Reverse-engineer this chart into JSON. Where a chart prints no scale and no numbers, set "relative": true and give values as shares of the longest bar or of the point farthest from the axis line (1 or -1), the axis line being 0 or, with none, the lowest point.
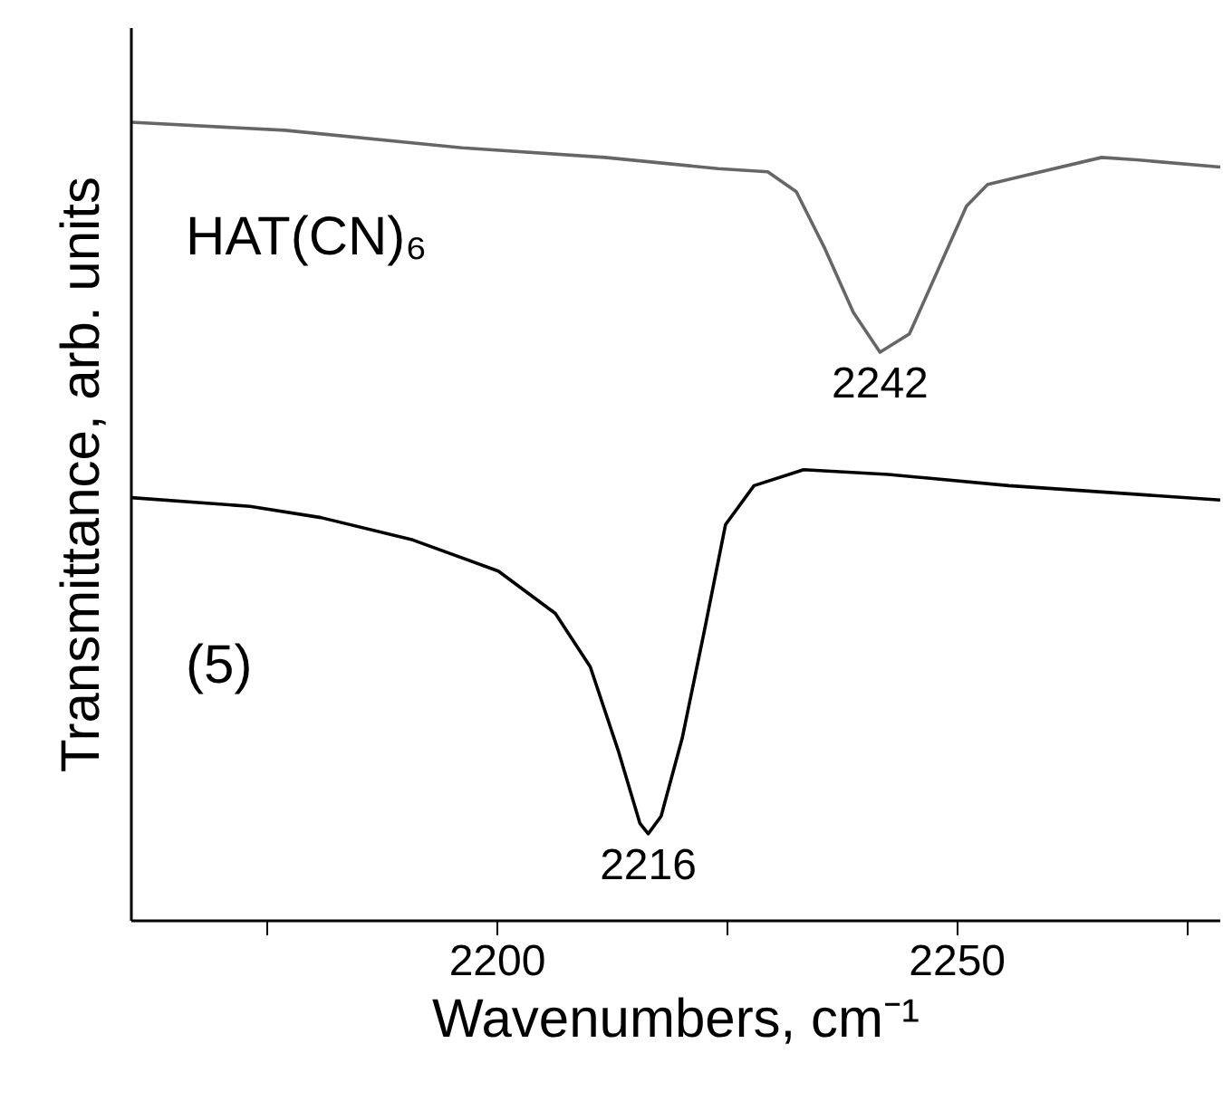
{
  "chart_data": {
    "type": "line",
    "relative": true,
    "xlabel": "Wavenumbers, cm⁻¹",
    "ylabel": "Transmittance, arb. units",
    "xlim": [
      2160.2,
      2278.6
    ],
    "xticks": [
      {
        "value": 2175,
        "label": null
      },
      2200,
      {
        "value": 2225,
        "label": null
      },
      2250,
      {
        "value": 2275,
        "label": null
      }
    ],
    "tick_labels": "x",
    "grid": false,
    "series": [
      {
        "name": "HAT(CN)₆",
        "color": "#666666",
        "x": [
          2160.2,
          2176.9,
          2196.2,
          2211.7,
          2224.0,
          2229.4,
          2232.5,
          2235.6,
          2238.7,
          2241.6,
          2244.8,
          2247.9,
          2251.0,
          2253.3,
          2257.2,
          2265.7,
          2269.5,
          2278.6
        ],
        "values": [
          1.0,
          0.99,
          0.968,
          0.956,
          0.942,
          0.938,
          0.913,
          0.842,
          0.762,
          0.712,
          0.735,
          0.815,
          0.895,
          0.922,
          0.933,
          0.956,
          0.953,
          0.944
        ]
      },
      {
        "name": "(5)",
        "color": "#000000",
        "x": [
          2160.2,
          2173.1,
          2180.8,
          2190.8,
          2200.1,
          2206.3,
          2210.1,
          2213.2,
          2215.5,
          2216.4,
          2217.8,
          2220.1,
          2222.5,
          2224.8,
          2227.9,
          2233.3,
          2242.5,
          2255.6,
          2278.6
        ],
        "values": [
          0.53,
          0.519,
          0.505,
          0.477,
          0.438,
          0.385,
          0.318,
          0.211,
          0.122,
          0.109,
          0.131,
          0.229,
          0.363,
          0.496,
          0.545,
          0.565,
          0.559,
          0.545,
          0.527
        ]
      }
    ],
    "annotations": [
      {
        "text": "2242",
        "x": 2241.6,
        "y": 0.712
      },
      {
        "text": "2216",
        "x": 2216.4,
        "y": 0.109
      }
    ]
  }
}
